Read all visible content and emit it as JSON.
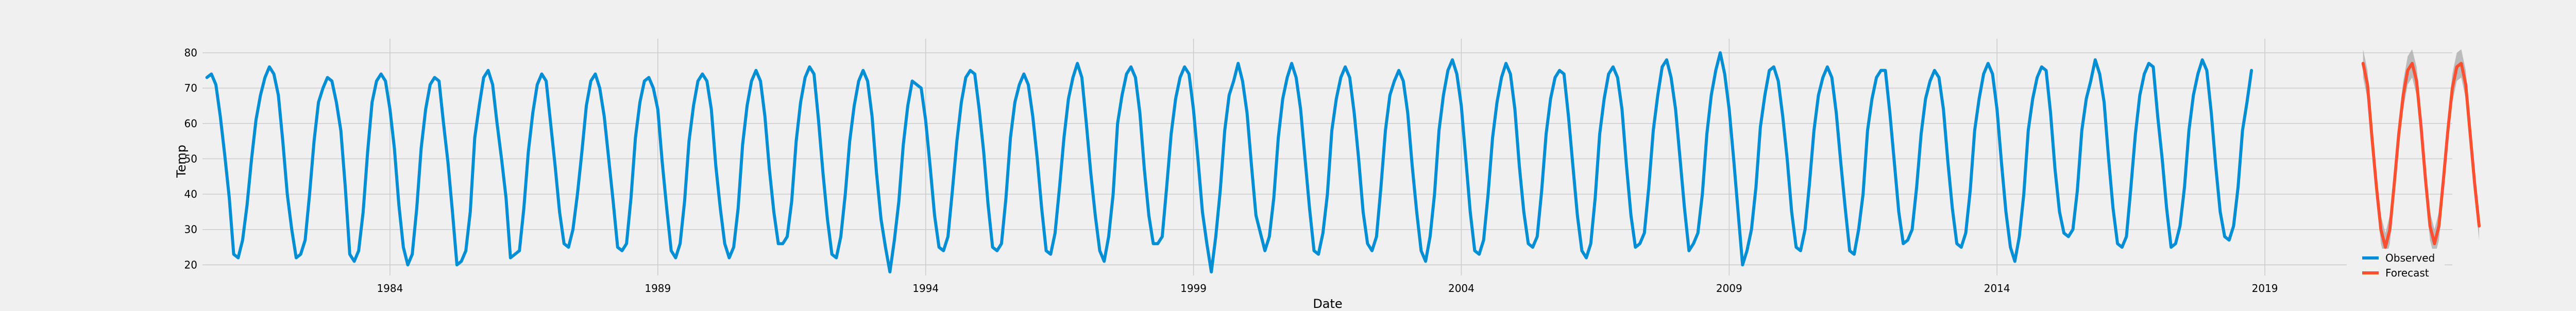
{
  "chart_data": {
    "type": "line",
    "title": "",
    "xlabel": "Date",
    "ylabel": "Temp",
    "xlim": [
      1980.5,
      2022.5
    ],
    "ylim": [
      17,
      84
    ],
    "x_ticks": [
      1984,
      1989,
      1994,
      1999,
      2004,
      2009,
      2014,
      2019
    ],
    "y_ticks": [
      20,
      30,
      40,
      50,
      60,
      70,
      80
    ],
    "grid": true,
    "legend": {
      "position": "bottom-right",
      "entries": [
        "Observed",
        "Forecast"
      ]
    },
    "series": [
      {
        "name": "Observed",
        "color": "#008fd5",
        "x_start": 1980.583,
        "x_step": 0.0833333,
        "values": [
          73,
          74,
          71,
          62,
          51,
          39,
          23,
          22,
          27,
          37,
          50,
          61,
          68,
          73,
          76,
          74,
          68,
          55,
          40,
          30,
          22,
          23,
          27,
          40,
          55,
          66,
          70,
          73,
          72,
          66,
          58,
          42,
          23,
          21,
          24,
          35,
          52,
          66,
          72,
          74,
          72,
          64,
          53,
          37,
          25,
          20,
          23,
          36,
          53,
          64,
          71,
          73,
          72,
          60,
          49,
          35,
          20,
          21,
          24,
          35,
          56,
          65,
          73,
          75,
          71,
          60,
          50,
          39,
          22,
          23,
          24,
          36,
          52,
          63,
          71,
          74,
          72,
          60,
          48,
          35,
          26,
          25,
          30,
          40,
          52,
          65,
          72,
          74,
          70,
          62,
          50,
          38,
          25,
          24,
          26,
          39,
          56,
          66,
          72,
          73,
          70,
          64,
          49,
          36,
          24,
          22,
          26,
          38,
          55,
          65,
          72,
          74,
          72,
          64,
          48,
          36,
          26,
          22,
          25,
          36,
          54,
          65,
          72,
          75,
          72,
          62,
          47,
          35,
          26,
          26,
          28,
          38,
          55,
          66,
          73,
          76,
          74,
          61,
          46,
          33,
          23,
          22,
          28,
          40,
          55,
          65,
          72,
          75,
          72,
          62,
          46,
          33,
          25,
          18,
          27,
          38,
          54,
          65,
          72,
          71,
          70,
          61,
          48,
          34,
          25,
          24,
          28,
          41,
          55,
          66,
          73,
          75,
          74,
          64,
          52,
          37,
          25,
          24,
          26,
          39,
          56,
          66,
          71,
          74,
          71,
          62,
          50,
          36,
          24,
          23,
          29,
          42,
          56,
          67,
          73,
          77,
          73,
          60,
          46,
          34,
          24,
          21,
          28,
          40,
          60,
          68,
          74,
          76,
          73,
          63,
          47,
          34,
          26,
          26,
          28,
          42,
          57,
          67,
          73,
          76,
          74,
          64,
          50,
          35,
          26,
          18,
          28,
          41,
          58,
          68,
          72,
          77,
          72,
          63,
          48,
          34,
          29,
          24,
          28,
          39,
          56,
          67,
          73,
          77,
          73,
          64,
          50,
          36,
          24,
          23,
          29,
          40,
          58,
          67,
          73,
          76,
          73,
          63,
          50,
          35,
          26,
          24,
          28,
          42,
          58,
          68,
          72,
          75,
          72,
          63,
          48,
          35,
          24,
          21,
          28,
          40,
          58,
          68,
          75,
          78,
          74,
          65,
          50,
          35,
          24,
          23,
          27,
          40,
          56,
          66,
          73,
          77,
          74,
          64,
          48,
          35,
          26,
          25,
          28,
          41,
          57,
          67,
          73,
          75,
          74,
          62,
          48,
          34,
          24,
          22,
          26,
          39,
          57,
          67,
          74,
          76,
          73,
          64,
          48,
          34,
          25,
          26,
          29,
          42,
          58,
          68,
          76,
          78,
          73,
          64,
          50,
          36,
          24,
          26,
          29,
          40,
          57,
          68,
          75,
          80,
          74,
          64,
          50,
          35,
          20,
          24,
          30,
          42,
          59,
          68,
          75,
          76,
          72,
          62,
          50,
          35,
          25,
          24,
          30,
          43,
          58,
          68,
          73,
          76,
          73,
          63,
          49,
          36,
          24,
          23,
          30,
          40,
          58,
          67,
          73,
          75,
          75,
          63,
          49,
          35,
          26,
          27,
          30,
          42,
          57,
          67,
          72,
          75,
          73,
          64,
          49,
          36,
          26,
          25,
          29,
          41,
          58,
          67,
          74,
          77,
          74,
          64,
          49,
          35,
          25,
          21,
          28,
          40,
          58,
          67,
          73,
          76,
          75,
          63,
          47,
          35,
          29,
          28,
          30,
          41,
          58,
          67,
          72,
          78,
          74,
          66,
          50,
          36,
          26,
          25,
          28,
          42,
          57,
          68,
          74,
          77,
          76,
          62,
          50,
          36,
          25,
          26,
          31,
          42,
          58,
          68,
          74,
          78,
          75,
          63,
          48,
          35,
          28,
          27,
          31,
          42,
          58,
          66,
          75
        ]
      },
      {
        "name": "Forecast",
        "color": "#fc4f30",
        "x_start": 2020.833,
        "x_step": 0.0833333,
        "values": [
          77,
          71,
          56,
          42,
          30,
          25,
          30,
          43,
          57,
          68,
          75,
          77,
          72,
          59,
          44,
          31,
          26,
          31,
          44,
          58,
          70,
          76,
          77,
          71,
          57,
          43,
          31
        ],
        "lower": [
          73,
          67,
          52,
          38,
          26,
          21,
          26,
          39,
          53,
          64,
          71,
          73,
          68,
          55,
          40,
          27,
          22,
          27,
          40,
          54,
          66,
          72,
          73,
          67,
          53,
          39,
          27
        ],
        "upper": [
          81,
          75,
          60,
          46,
          34,
          29,
          34,
          47,
          61,
          72,
          79,
          81,
          76,
          63,
          48,
          35,
          30,
          35,
          48,
          62,
          74,
          80,
          81,
          75,
          61,
          47,
          35
        ],
        "interval_color": "#aaaaaa"
      }
    ]
  }
}
